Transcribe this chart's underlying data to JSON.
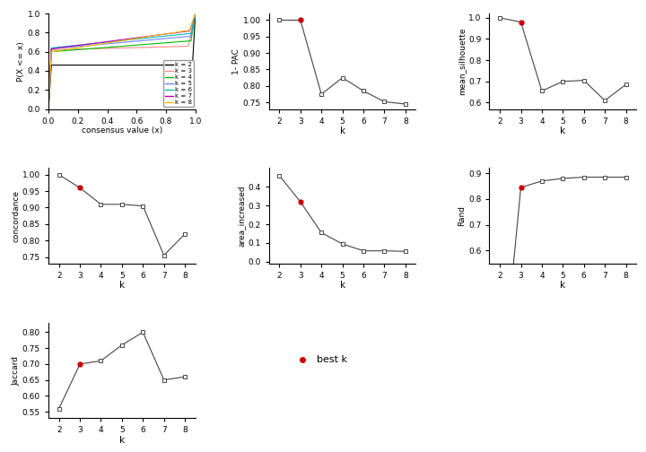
{
  "k_values": [
    2,
    3,
    4,
    5,
    6,
    7,
    8
  ],
  "pac_1minus": [
    1.0,
    1.0,
    0.775,
    0.825,
    0.785,
    0.752,
    0.745
  ],
  "pac_best_k": 3,
  "mean_silhouette": [
    1.0,
    0.98,
    0.655,
    0.7,
    0.705,
    0.61,
    0.685
  ],
  "silhouette_best_k": 3,
  "concordance": [
    1.0,
    0.96,
    0.91,
    0.91,
    0.905,
    0.755,
    0.82
  ],
  "concordance_best_k": 3,
  "area_increased": [
    0.46,
    0.32,
    0.155,
    0.095,
    0.058,
    0.058,
    0.055
  ],
  "area_best_k": 3,
  "rand": [
    0.0,
    0.845,
    0.87,
    0.88,
    0.885,
    0.885,
    0.885
  ],
  "rand_best_k": 3,
  "jaccard": [
    0.56,
    0.7,
    0.71,
    0.76,
    0.8,
    0.65,
    0.66
  ],
  "jaccard_best_k": 3,
  "ecdf_colors": [
    "#000000",
    "#FF8888",
    "#00BB00",
    "#6688FF",
    "#00BBBB",
    "#BB00BB",
    "#FFBB00"
  ],
  "ecdf_labels": [
    "k = 2",
    "k = 3",
    "k = 4",
    "k = 5",
    "k = 6",
    "k = 7",
    "k = 8"
  ],
  "best_k_color": "#CC0000",
  "line_color": "#444444"
}
